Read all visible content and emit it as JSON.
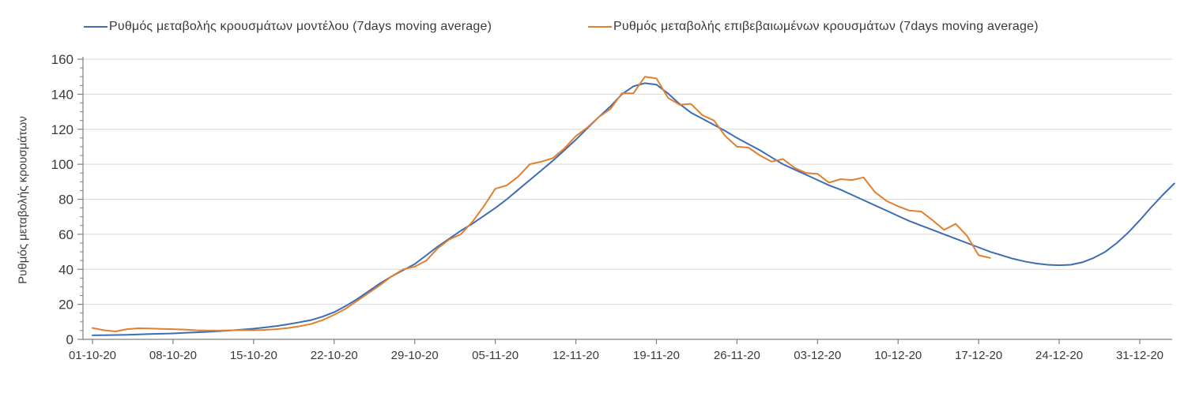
{
  "chart_data": {
    "type": "line",
    "title": "",
    "legend_position": "top",
    "grid": true,
    "background": "#ffffff",
    "grid_color": "#d9d9d9",
    "axis_color": "#808080",
    "text_color": "#3a3a3a",
    "y_axis": {
      "label": "Ρυθμός μεταβολής κρουσμάτων",
      "min": 0,
      "max": 160,
      "tick_step": 20,
      "minor_tick_step": 5,
      "ticks": [
        0,
        20,
        40,
        60,
        80,
        100,
        120,
        140,
        160
      ]
    },
    "x_axis": {
      "tick_labels": [
        "01-10-20",
        "08-10-20",
        "15-10-20",
        "22-10-20",
        "29-10-20",
        "05-11-20",
        "12-11-20",
        "19-11-20",
        "26-11-20",
        "03-12-20",
        "10-12-20",
        "17-12-20",
        "24-12-20",
        "31-12-20"
      ],
      "tick_day_offsets": [
        0,
        7,
        14,
        21,
        28,
        35,
        42,
        49,
        56,
        63,
        70,
        77,
        84,
        91
      ]
    },
    "series": [
      {
        "name": "Ρυθμός μεταβολής κρουσμάτων μοντέλου (7days moving average)",
        "color": "#3d6db5",
        "start_day": 0,
        "values": [
          2.3,
          2.4,
          2.5,
          2.6,
          2.8,
          3.0,
          3.2,
          3.4,
          3.7,
          4.0,
          4.3,
          4.7,
          5.1,
          5.6,
          6.1,
          6.8,
          7.6,
          8.6,
          9.8,
          11.0,
          13.0,
          15.5,
          19.0,
          23.0,
          27.5,
          32.0,
          36.0,
          39.5,
          43.0,
          48.0,
          53.0,
          57.5,
          62.0,
          66.0,
          70.5,
          75.0,
          80.0,
          85.5,
          91.0,
          96.5,
          102.0,
          108.0,
          114.0,
          120.5,
          127.0,
          133.0,
          140.0,
          144.5,
          146.3,
          145.5,
          140.5,
          134.5,
          129.5,
          126.0,
          122.5,
          119.0,
          115.0,
          111.5,
          108.0,
          104.0,
          100.0,
          97.0,
          94.0,
          91.0,
          88.0,
          85.5,
          82.5,
          79.5,
          76.5,
          73.5,
          70.5,
          67.5,
          65.0,
          62.5,
          60.0,
          57.5,
          55.0,
          52.5,
          50.0,
          48.0,
          46.0,
          44.5,
          43.3,
          42.6,
          42.3,
          42.6,
          44.0,
          46.5,
          50.0,
          55.0,
          61.0,
          68.0,
          75.5,
          82.5,
          89.0
        ]
      },
      {
        "name": "Ρυθμός μεταβολής επιβεβαιωμένων κρουσμάτων (7days moving average)",
        "color": "#e2802f",
        "start_day": 0,
        "values": [
          6.5,
          5.2,
          4.5,
          5.8,
          6.3,
          6.2,
          6.0,
          5.8,
          5.6,
          5.2,
          5.0,
          5.0,
          5.2,
          5.3,
          5.2,
          5.4,
          5.8,
          6.5,
          7.5,
          8.8,
          11.0,
          14.0,
          17.5,
          22.0,
          26.5,
          31.0,
          36.0,
          40.0,
          41.5,
          45.0,
          52.0,
          57.0,
          60.0,
          67.0,
          76.0,
          86.0,
          88.0,
          93.0,
          100.0,
          101.5,
          103.5,
          109.0,
          116.0,
          121.0,
          127.0,
          131.5,
          140.5,
          140.5,
          150.0,
          149.0,
          138.0,
          134.0,
          134.5,
          128.0,
          125.0,
          116.0,
          110.0,
          109.5,
          105.0,
          101.5,
          103.0,
          98.0,
          95.0,
          94.5,
          89.5,
          91.5,
          91.0,
          92.5,
          84.0,
          79.0,
          76.0,
          73.5,
          73.0,
          68.0,
          62.5,
          66.0,
          59.0,
          48.0,
          46.5
        ]
      }
    ]
  }
}
